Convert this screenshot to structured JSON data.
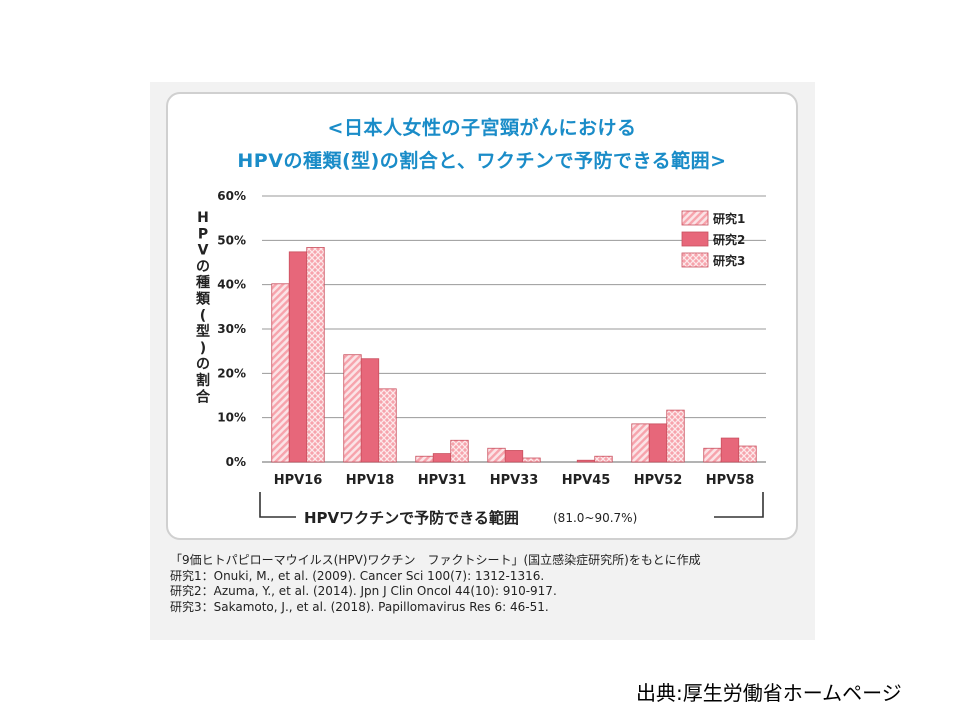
{
  "chart_data": {
    "type": "bar",
    "title_line1": "<日本人女性の子宮頸がんにおける",
    "title_line2": "HPVの種類(型)の割合と、ワクチンで予防できる範囲>",
    "ylabel": "HPVの種類(型)の割合",
    "ylim": [
      0,
      60
    ],
    "yticks": [
      "0%",
      "10%",
      "20%",
      "30%",
      "40%",
      "50%",
      "60%"
    ],
    "categories": [
      "HPV16",
      "HPV18",
      "HPV31",
      "HPV33",
      "HPV45",
      "HPV52",
      "HPV58"
    ],
    "series": [
      {
        "name": "研究1",
        "values": [
          40.2,
          24.2,
          1.3,
          3.1,
          0.0,
          8.6,
          3.1
        ]
      },
      {
        "name": "研究2",
        "values": [
          47.4,
          23.3,
          1.9,
          2.6,
          0.4,
          8.6,
          5.4
        ]
      },
      {
        "name": "研究3",
        "values": [
          48.4,
          16.5,
          4.9,
          0.9,
          1.3,
          11.7,
          3.6
        ]
      }
    ],
    "grid": true,
    "legend_position": "top-right",
    "bracket_label": "HPVワクチンで予防できる範囲",
    "bracket_range": "(81.0~90.7%)",
    "colors": {
      "series_base": "#f7a3ac",
      "series_dark": "#e7677a",
      "series_hatch": "#f3c3c8",
      "grid": "#9a9a9a",
      "title": "#1a8cc8"
    }
  },
  "notes": [
    "「9価ヒトパピローマウイルス(HPV)ワクチン　ファクトシート」(国立感染症研究所)をもとに作成",
    "研究1：Onuki, M., et al. (2009). Cancer Sci 100(7): 1312-1316.",
    "研究2：Azuma, Y., et al. (2014). Jpn J Clin Oncol 44(10): 910-917.",
    "研究3：Sakamoto, J., et al. (2018). Papillomavirus Res 6: 46-51."
  ],
  "source": "出典:厚生労働省ホームページ"
}
